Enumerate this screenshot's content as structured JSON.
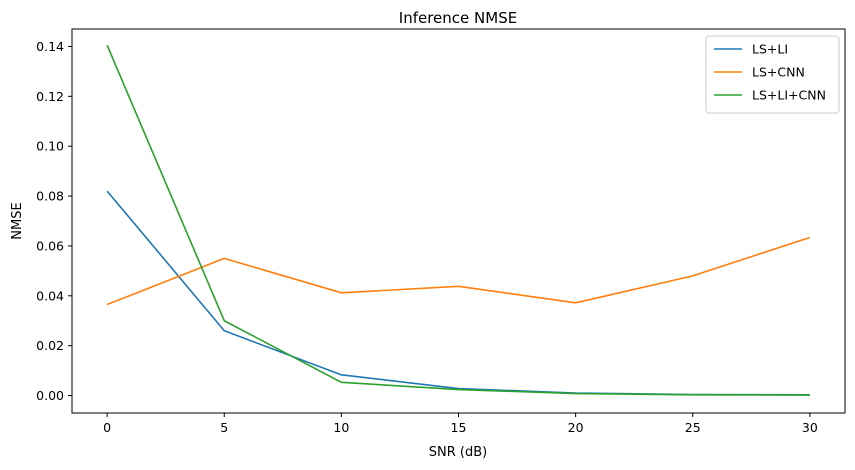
{
  "chart_data": {
    "type": "line",
    "title": "Inference NMSE",
    "xlabel": "SNR (dB)",
    "ylabel": "NMSE",
    "x": [
      0,
      5,
      10,
      15,
      20,
      25,
      30
    ],
    "xticks": [
      "0",
      "5",
      "10",
      "15",
      "20",
      "25",
      "30"
    ],
    "yticks": [
      "0.00",
      "0.02",
      "0.04",
      "0.06",
      "0.08",
      "0.10",
      "0.12",
      "0.14"
    ],
    "xlim": [
      -1.5,
      31.5
    ],
    "ylim": [
      -0.007,
      0.147
    ],
    "grid": false,
    "legend_position": "top-right",
    "series": [
      {
        "name": "LS+LI",
        "color": "#1f77b4",
        "values": [
          0.082,
          0.026,
          0.0083,
          0.0028,
          0.001,
          0.0004,
          0.0003
        ]
      },
      {
        "name": "LS+CNN",
        "color": "#ff7f0e",
        "values": [
          0.0365,
          0.055,
          0.0412,
          0.0438,
          0.0372,
          0.048,
          0.0634
        ]
      },
      {
        "name": "LS+LI+CNN",
        "color": "#2ca02c",
        "values": [
          0.1405,
          0.03,
          0.0053,
          0.0024,
          0.0008,
          0.0003,
          0.0002
        ]
      }
    ]
  }
}
